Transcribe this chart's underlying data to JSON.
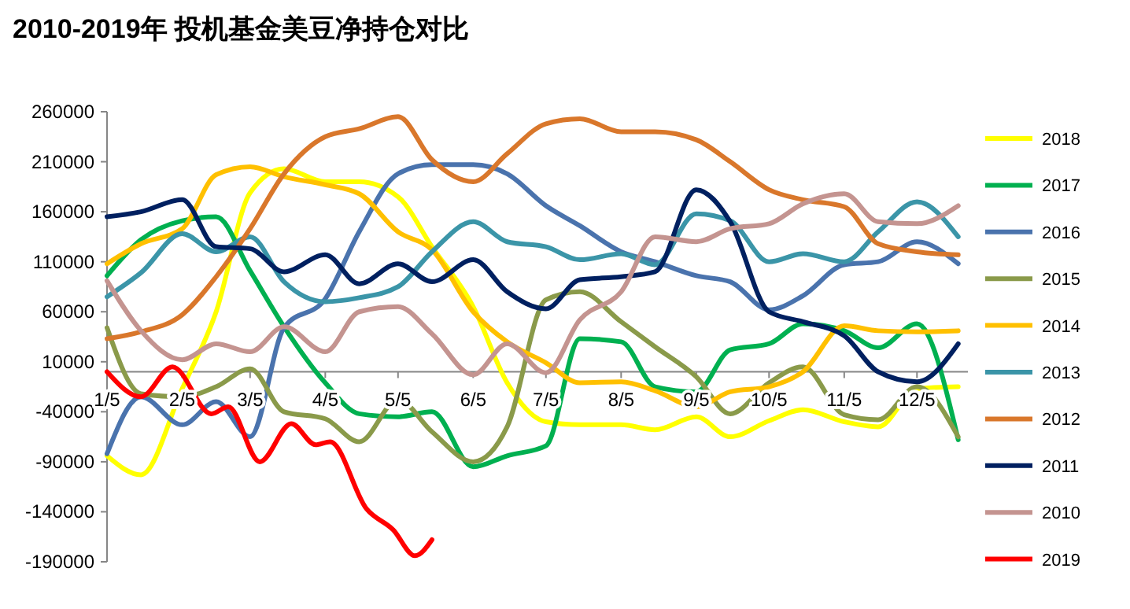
{
  "chart_data": {
    "type": "line",
    "title": "2010-2019年 投机基金美豆净持仓对比",
    "x": [
      "--01-05",
      "--01-19",
      "--02-05",
      "--02-19",
      "--03-05",
      "--03-19",
      "--04-05",
      "--04-19",
      "--05-05",
      "--05-19",
      "--06-05",
      "--06-19",
      "--07-05",
      "--07-19",
      "--08-05",
      "--08-19",
      "--09-05",
      "--09-19",
      "--10-05",
      "--10-19",
      "--11-05",
      "--11-19",
      "--12-05",
      "--12-22"
    ],
    "xlim": [
      "--01-05",
      "--12-26"
    ],
    "xticks": [
      {
        "value": "--01-05",
        "label": "1/5"
      },
      {
        "value": "--02-05",
        "label": "2/5"
      },
      {
        "value": "--03-05",
        "label": "3/5"
      },
      {
        "value": "--04-05",
        "label": "4/5"
      },
      {
        "value": "--05-05",
        "label": "5/5"
      },
      {
        "value": "--06-05",
        "label": "6/5"
      },
      {
        "value": "--07-05",
        "label": "7/5"
      },
      {
        "value": "--08-05",
        "label": "8/5"
      },
      {
        "value": "--09-05",
        "label": "9/5"
      },
      {
        "value": "--10-05",
        "label": "10/5"
      },
      {
        "value": "--11-05",
        "label": "11/5"
      },
      {
        "value": "--12-05",
        "label": "12/5"
      }
    ],
    "ylim": [
      -190000,
      260000
    ],
    "yticks": [
      -190000,
      -140000,
      -90000,
      -40000,
      10000,
      60000,
      110000,
      160000,
      210000,
      260000
    ],
    "grid": false,
    "legend": "right",
    "marker": "none",
    "line_style": "solid",
    "series": [
      {
        "name": "2018",
        "color": "#ffff00",
        "values": [
          -84000,
          -103000,
          -17000,
          60000,
          179000,
          203000,
          190000,
          190000,
          175000,
          125000,
          65000,
          -11000,
          -50000,
          -53000,
          -53000,
          -58000,
          -45000,
          -65000,
          -49000,
          -38000,
          -50000,
          -55000,
          -17000,
          -15000
        ]
      },
      {
        "name": "2017",
        "color": "#00b050",
        "values": [
          96000,
          132000,
          151000,
          155000,
          101000,
          45000,
          -11000,
          -42000,
          -45000,
          -40000,
          -95000,
          -84000,
          -74000,
          33000,
          30000,
          -15000,
          -20000,
          22000,
          28000,
          48000,
          41000,
          24000,
          48000,
          -68000
        ]
      },
      {
        "name": "2016",
        "color": "#4a73ad",
        "values": [
          -82000,
          -25000,
          -53000,
          -30000,
          -65000,
          44000,
          73000,
          140000,
          198000,
          207000,
          207000,
          198000,
          166000,
          146000,
          120000,
          110000,
          96000,
          90000,
          62000,
          76000,
          107000,
          110000,
          130000,
          108000
        ]
      },
      {
        "name": "2015",
        "color": "#8a9a4a",
        "values": [
          44000,
          -22000,
          -25000,
          -15000,
          3000,
          -40000,
          -47000,
          -70000,
          -28000,
          -60000,
          -90000,
          -55000,
          72000,
          80000,
          50000,
          25000,
          -5000,
          -42000,
          -11000,
          5000,
          -43000,
          -48000,
          -15000,
          -65000
        ]
      },
      {
        "name": "2014",
        "color": "#ffc000",
        "values": [
          108000,
          128000,
          143000,
          197000,
          205000,
          195000,
          187000,
          178000,
          140000,
          122000,
          60000,
          30000,
          9000,
          -11000,
          -10000,
          -19000,
          -35000,
          -20000,
          -15000,
          0,
          46000,
          41000,
          40000,
          41000
        ]
      },
      {
        "name": "2013",
        "color": "#3b95a8",
        "values": [
          75000,
          99000,
          138000,
          120000,
          135000,
          90000,
          70000,
          74000,
          85000,
          120000,
          150000,
          130000,
          125000,
          112000,
          118000,
          107000,
          158000,
          151000,
          110000,
          118000,
          110000,
          140000,
          170000,
          135000
        ]
      },
      {
        "name": "2012",
        "color": "#d9772b",
        "values": [
          33000,
          40000,
          57000,
          95000,
          143000,
          198000,
          235000,
          243000,
          255000,
          212000,
          190000,
          218000,
          248000,
          253000,
          240000,
          240000,
          232000,
          210000,
          182000,
          172000,
          165000,
          128000,
          120000,
          117000
        ]
      },
      {
        "name": "2011",
        "color": "#002060",
        "values": [
          155000,
          160000,
          172000,
          125000,
          123000,
          100000,
          117000,
          88000,
          108000,
          90000,
          112000,
          80000,
          63000,
          92000,
          95000,
          100000,
          182000,
          150000,
          60000,
          50000,
          36000,
          0,
          -10000,
          28000
        ]
      },
      {
        "name": "2010",
        "color": "#c49490",
        "values": [
          91000,
          41000,
          12000,
          28000,
          20000,
          45000,
          20000,
          60000,
          65000,
          38000,
          -3000,
          28000,
          -1000,
          52000,
          80000,
          135000,
          130000,
          143000,
          148000,
          168000,
          178000,
          150000,
          148000,
          166000
        ]
      },
      {
        "name": "2019",
        "color": "#ff0000",
        "x": [
          "--01-05",
          "--01-19",
          "--02-01",
          "--02-17",
          "--02-24",
          "--03-09",
          "--03-22",
          "--04-01",
          "--04-07",
          "--04-22",
          "--05-03",
          "--05-12",
          "--05-19"
        ],
        "values": [
          0,
          -25000,
          5000,
          -42000,
          -35000,
          -90000,
          -52000,
          -73000,
          -70000,
          -137000,
          -158000,
          -184000,
          -168000
        ]
      }
    ]
  }
}
